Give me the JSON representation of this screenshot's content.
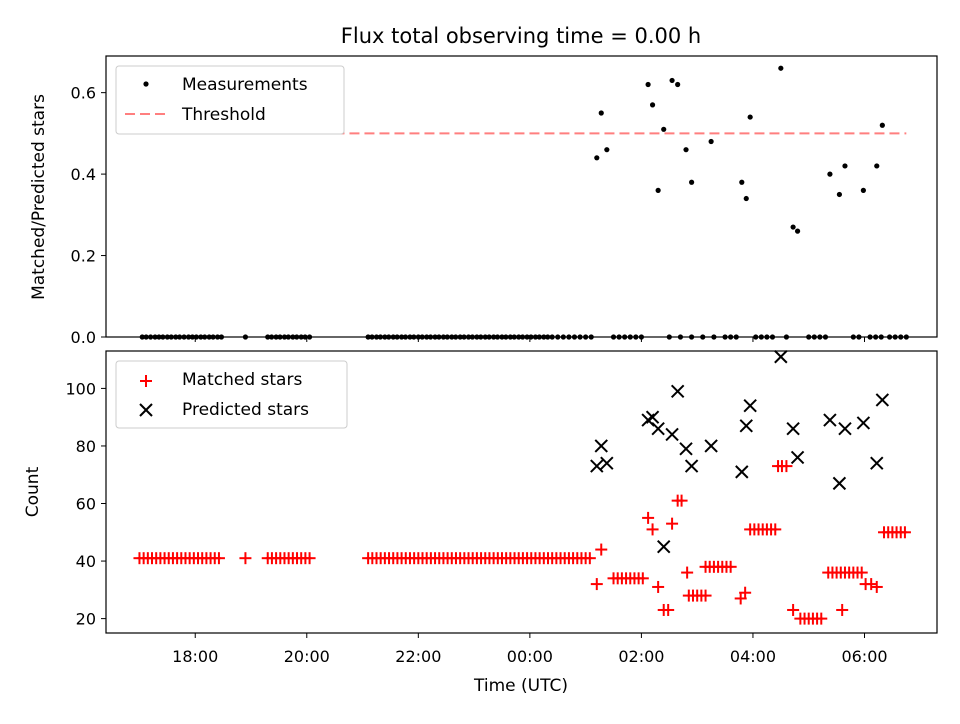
{
  "title": "Flux total observing time = 0.00 h",
  "top_panel": {
    "ylabel": "Matched/Predicted stars",
    "legend": {
      "measurements": "Measurements",
      "threshold": "Threshold"
    },
    "yticks": [
      "0.0",
      "0.2",
      "0.4",
      "0.6"
    ]
  },
  "bottom_panel": {
    "ylabel": "Count",
    "xlabel": "Time (UTC)",
    "legend": {
      "matched": "Matched stars",
      "predicted": "Predicted stars"
    },
    "yticks": [
      "20",
      "40",
      "60",
      "80",
      "100"
    ],
    "xticks": [
      "18:00",
      "20:00",
      "22:00",
      "00:00",
      "02:00",
      "04:00",
      "06:00"
    ]
  },
  "chart_data": [
    {
      "type": "scatter",
      "panel": "top",
      "title": "Flux total observing time = 0.00 h",
      "ylabel": "Matched/Predicted stars",
      "ylim": [
        0,
        0.69
      ],
      "xlim_hours": [
        16.4,
        7.3
      ],
      "threshold": 0.5,
      "threshold_x_hours": [
        17.0,
        6.75
      ],
      "series": [
        {
          "name": "Measurements",
          "color": "#000000",
          "zero_x_hours": [
            17.05,
            17.12,
            17.2,
            17.28,
            17.35,
            17.42,
            17.5,
            17.57,
            17.65,
            17.72,
            17.8,
            17.88,
            17.95,
            18.02,
            18.1,
            18.17,
            18.25,
            18.32,
            18.4,
            18.47,
            18.9,
            19.3,
            19.37,
            19.45,
            19.52,
            19.6,
            19.67,
            19.75,
            19.82,
            19.9,
            19.97,
            20.05,
            21.1,
            21.17,
            21.25,
            21.32,
            21.4,
            21.47,
            21.55,
            21.62,
            21.7,
            21.77,
            21.85,
            21.92,
            22.0,
            22.07,
            22.15,
            22.22,
            22.3,
            22.37,
            22.45,
            22.52,
            22.6,
            22.67,
            22.75,
            22.82,
            22.9,
            22.97,
            23.05,
            23.12,
            23.2,
            23.27,
            23.35,
            23.42,
            23.5,
            23.57,
            23.65,
            23.72,
            23.8,
            23.87,
            23.95,
            0.02,
            0.1,
            0.17,
            0.25,
            0.32,
            0.4,
            0.5,
            0.6,
            0.7,
            0.8,
            0.9,
            1.0,
            1.1,
            1.5,
            1.6,
            1.7,
            1.8,
            1.9,
            2.0,
            2.5,
            2.7,
            2.9,
            3.1,
            3.3,
            3.5,
            3.6,
            3.7,
            4.05,
            4.15,
            4.25,
            4.35,
            4.6,
            5.0,
            5.1,
            5.2,
            5.3,
            5.8,
            5.9,
            6.1,
            6.2,
            6.3,
            6.45,
            6.55,
            6.65,
            6.75
          ],
          "points": [
            [
              1.2,
              0.44
            ],
            [
              1.28,
              0.55
            ],
            [
              1.38,
              0.46
            ],
            [
              2.12,
              0.62
            ],
            [
              2.2,
              0.57
            ],
            [
              2.3,
              0.36
            ],
            [
              2.4,
              0.51
            ],
            [
              2.55,
              0.63
            ],
            [
              2.65,
              0.62
            ],
            [
              2.8,
              0.46
            ],
            [
              2.9,
              0.38
            ],
            [
              3.25,
              0.48
            ],
            [
              3.8,
              0.38
            ],
            [
              3.88,
              0.34
            ],
            [
              3.95,
              0.54
            ],
            [
              4.5,
              0.66
            ],
            [
              4.72,
              0.27
            ],
            [
              4.8,
              0.26
            ],
            [
              5.38,
              0.4
            ],
            [
              5.55,
              0.35
            ],
            [
              5.65,
              0.42
            ],
            [
              5.98,
              0.36
            ],
            [
              6.22,
              0.42
            ],
            [
              6.32,
              0.52
            ]
          ]
        },
        {
          "name": "Threshold",
          "color": "#ff7f7f",
          "style": "dashed",
          "value": 0.5
        }
      ]
    },
    {
      "type": "scatter",
      "panel": "bottom",
      "xlabel": "Time (UTC)",
      "ylabel": "Count",
      "ylim": [
        15,
        113
      ],
      "xlim_hours": [
        16.4,
        7.3
      ],
      "series": [
        {
          "name": "Matched stars",
          "marker": "+",
          "color": "#ff0000",
          "runs": [
            {
              "from": 17.0,
              "to": 18.45,
              "step": 0.075,
              "value": 41
            },
            {
              "from": 18.9,
              "to": 18.9,
              "step": 0.1,
              "value": 41
            },
            {
              "from": 19.3,
              "to": 20.05,
              "step": 0.075,
              "value": 41
            },
            {
              "from": 21.1,
              "to": 1.1,
              "step": 0.075,
              "value": 41
            },
            {
              "from": 1.5,
              "to": 2.05,
              "step": 0.075,
              "value": 34
            },
            {
              "from": 3.15,
              "to": 3.65,
              "step": 0.075,
              "value": 38
            },
            {
              "from": 2.85,
              "to": 3.2,
              "step": 0.075,
              "value": 28
            },
            {
              "from": 3.95,
              "to": 4.4,
              "step": 0.075,
              "value": 51
            },
            {
              "from": 4.85,
              "to": 5.25,
              "step": 0.075,
              "value": 20
            },
            {
              "from": 5.35,
              "to": 5.95,
              "step": 0.075,
              "value": 36
            },
            {
              "from": 6.35,
              "to": 6.75,
              "step": 0.075,
              "value": 50
            }
          ],
          "points": [
            [
              1.2,
              32
            ],
            [
              1.28,
              44
            ],
            [
              2.12,
              55
            ],
            [
              2.2,
              51
            ],
            [
              2.3,
              31
            ],
            [
              2.4,
              23
            ],
            [
              2.48,
              23
            ],
            [
              2.55,
              53
            ],
            [
              2.65,
              61
            ],
            [
              2.72,
              61
            ],
            [
              2.82,
              36
            ],
            [
              3.78,
              27
            ],
            [
              3.86,
              29
            ],
            [
              4.45,
              73
            ],
            [
              4.52,
              73
            ],
            [
              4.6,
              73
            ],
            [
              4.72,
              23
            ],
            [
              5.6,
              23
            ],
            [
              6.02,
              32
            ],
            [
              6.12,
              32
            ],
            [
              6.22,
              31
            ]
          ]
        },
        {
          "name": "Predicted stars",
          "marker": "x",
          "color": "#000000",
          "points": [
            [
              1.2,
              73
            ],
            [
              1.28,
              80
            ],
            [
              1.38,
              74
            ],
            [
              2.12,
              89
            ],
            [
              2.2,
              90
            ],
            [
              2.3,
              86
            ],
            [
              2.4,
              45
            ],
            [
              2.55,
              84
            ],
            [
              2.65,
              99
            ],
            [
              2.8,
              79
            ],
            [
              2.9,
              73
            ],
            [
              3.25,
              80
            ],
            [
              3.8,
              71
            ],
            [
              3.88,
              87
            ],
            [
              3.95,
              94
            ],
            [
              4.5,
              111
            ],
            [
              4.72,
              86
            ],
            [
              4.8,
              76
            ],
            [
              5.38,
              89
            ],
            [
              5.55,
              67
            ],
            [
              5.65,
              86
            ],
            [
              5.98,
              88
            ],
            [
              6.22,
              74
            ],
            [
              6.32,
              96
            ]
          ]
        }
      ],
      "xticks": [
        "18:00",
        "20:00",
        "22:00",
        "00:00",
        "02:00",
        "04:00",
        "06:00"
      ]
    }
  ]
}
